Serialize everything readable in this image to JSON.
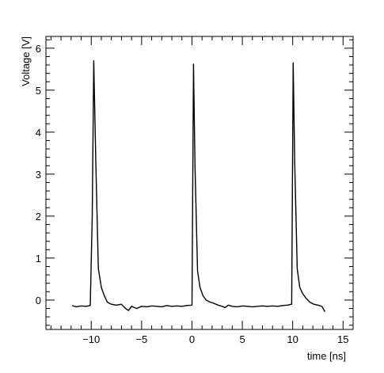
{
  "chart_data": {
    "type": "line",
    "title": "",
    "xlabel": "time [ns]",
    "ylabel": "Voltage [V]",
    "xlim": [
      -14.5,
      16.0
    ],
    "ylim": [
      -0.7,
      6.28
    ],
    "x_ticks": [
      -10,
      -5,
      0,
      5,
      10,
      15
    ],
    "x_tick_labels": [
      "−10",
      "−5",
      "0",
      "5",
      "10",
      "15"
    ],
    "y_ticks": [
      0,
      1,
      2,
      3,
      4,
      5,
      6
    ],
    "y_tick_labels": [
      "0",
      "1",
      "2",
      "3",
      "4",
      "5",
      "6"
    ],
    "grid": false,
    "legend": "none",
    "line_color": "#000000",
    "series": [
      {
        "x": [
          -11.9,
          -11.5,
          -11.0,
          -10.5,
          -10.1,
          -9.9,
          -9.75,
          -9.55,
          -9.3,
          -9.0,
          -8.7,
          -8.4,
          -8.0,
          -7.5,
          -7.0,
          -6.6,
          -6.3,
          -6.0,
          -5.5,
          -5.0,
          -4.5,
          -4.0,
          -3.5,
          -3.0,
          -2.5,
          -2.0,
          -1.5,
          -1.0,
          -0.5,
          0.0,
          0.15,
          0.3,
          0.55,
          0.8,
          1.1,
          1.4,
          1.8,
          2.2,
          2.6,
          3.0,
          3.3,
          3.6,
          4.0,
          4.5,
          5.0,
          5.5,
          6.0,
          6.5,
          7.0,
          7.5,
          8.0,
          8.5,
          9.0,
          9.5,
          9.9,
          10.05,
          10.2,
          10.45,
          10.7,
          11.0,
          11.3,
          11.7,
          12.1,
          12.5,
          12.9,
          13.2
        ],
        "y": [
          -0.13,
          -0.16,
          -0.14,
          -0.15,
          -0.13,
          2.0,
          5.7,
          3.3,
          0.75,
          0.3,
          0.1,
          -0.05,
          -0.1,
          -0.12,
          -0.1,
          -0.2,
          -0.25,
          -0.15,
          -0.2,
          -0.15,
          -0.16,
          -0.14,
          -0.15,
          -0.16,
          -0.13,
          -0.15,
          -0.14,
          -0.15,
          -0.13,
          -0.12,
          5.62,
          3.2,
          0.7,
          0.3,
          0.1,
          0.0,
          -0.05,
          -0.08,
          -0.12,
          -0.15,
          -0.18,
          -0.12,
          -0.15,
          -0.16,
          -0.14,
          -0.15,
          -0.16,
          -0.15,
          -0.14,
          -0.15,
          -0.14,
          -0.15,
          -0.13,
          -0.12,
          -0.1,
          5.65,
          3.3,
          0.75,
          0.3,
          0.15,
          0.05,
          -0.05,
          -0.1,
          -0.12,
          -0.15,
          -0.28
        ]
      }
    ]
  }
}
